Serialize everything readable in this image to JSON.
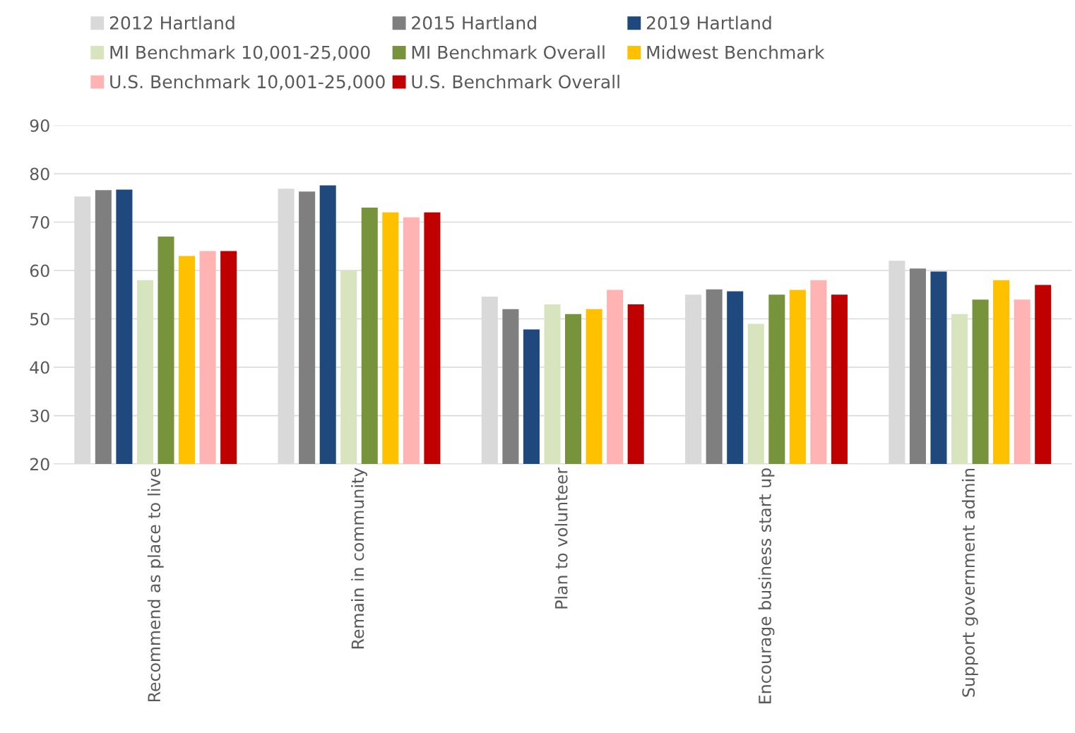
{
  "chart_data": {
    "type": "bar",
    "categories": [
      "Recommend as place to live",
      "Remain in community",
      "Plan to volunteer",
      "Encourage business start up",
      "Support government admin"
    ],
    "series": [
      {
        "name": "2012 Hartland",
        "color": "#d9d9d9",
        "values": [
          75.3,
          76.9,
          54.6,
          55,
          62
        ]
      },
      {
        "name": "2015 Hartland",
        "color": "#7f7f7f",
        "values": [
          76.6,
          76.3,
          52,
          56.1,
          60.4
        ]
      },
      {
        "name": "2019 Hartland",
        "color": "#1f497d",
        "values": [
          76.7,
          77.6,
          47.8,
          55.7,
          59.8
        ]
      },
      {
        "name": "MI Benchmark 10,001-25,000",
        "color": "#d7e4bd",
        "values": [
          58,
          60,
          53,
          49,
          51
        ]
      },
      {
        "name": "MI Benchmark Overall",
        "color": "#77933c",
        "values": [
          67,
          73,
          51,
          55,
          54
        ]
      },
      {
        "name": "Midwest Benchmark",
        "color": "#ffc000",
        "values": [
          63,
          72,
          52,
          56,
          58
        ]
      },
      {
        "name": "U.S. Benchmark 10,001-25,000",
        "color": "#ffb3b3",
        "values": [
          64,
          71,
          56,
          58,
          54
        ]
      },
      {
        "name": "U.S. Benchmark Overall",
        "color": "#c00000",
        "values": [
          64,
          72,
          53,
          55,
          57
        ]
      }
    ],
    "ylim": [
      20,
      90
    ],
    "yticks": [
      20,
      30,
      40,
      50,
      60,
      70,
      80,
      90
    ],
    "grid": "y",
    "legend": "top left"
  }
}
